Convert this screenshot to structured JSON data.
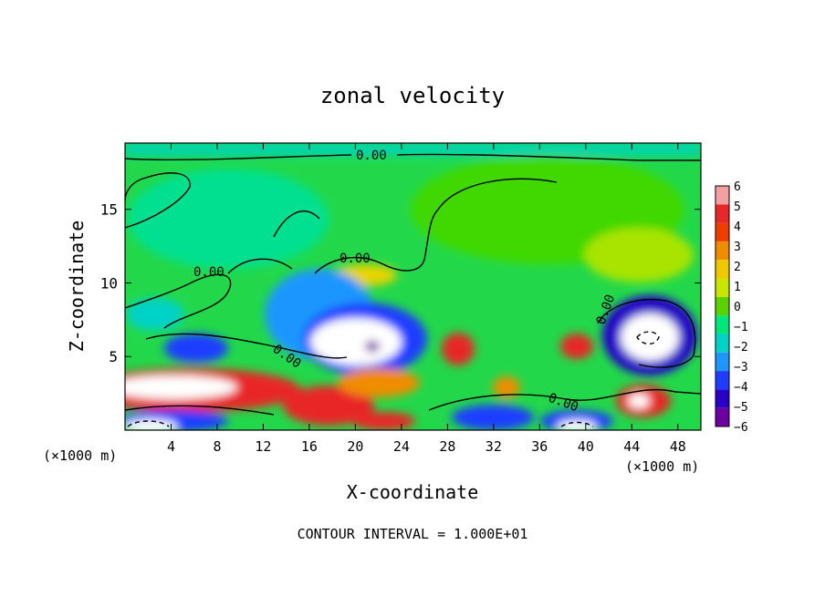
{
  "chart_data": {
    "type": "heatmap",
    "title": "zonal velocity",
    "xlabel": "X-coordinate",
    "ylabel": "Z-coordinate",
    "x_unit": "(×1000 m)",
    "footer": "CONTOUR INTERVAL = 1.000E+01",
    "xlim": [
      0,
      50
    ],
    "ylim": [
      0,
      19.5
    ],
    "x_ticks": [
      4,
      8,
      12,
      16,
      20,
      24,
      28,
      32,
      36,
      40,
      44,
      48
    ],
    "x_tick_labels": [
      "4",
      "8",
      "12",
      "16",
      "20",
      "24",
      "28",
      "32",
      "36",
      "40",
      "44",
      "48"
    ],
    "y_ticks": [
      5,
      10,
      15
    ],
    "y_tick_labels": [
      "5",
      "10",
      "15"
    ],
    "contour_labels": [
      "0.00",
      "0.00",
      "0.00",
      "0.00",
      "0.00",
      "0.00"
    ],
    "colorbar": {
      "levels": [
        6,
        5,
        4,
        3,
        2,
        1,
        0,
        -1,
        -2,
        -3,
        -4,
        -5,
        -6
      ],
      "labels": [
        "6",
        "5",
        "4",
        "3",
        "2",
        "1",
        "0",
        "−1",
        "−2",
        "−3",
        "−4",
        "−5",
        "−6"
      ],
      "colors": [
        "#f4a0a0",
        "#e82828",
        "#f03c00",
        "#f08c00",
        "#f0c800",
        "#c8e600",
        "#5ad200",
        "#00e678",
        "#00d2c8",
        "#1e96ff",
        "#1e3cff",
        "#2800c8",
        "#6e00a0"
      ]
    }
  }
}
